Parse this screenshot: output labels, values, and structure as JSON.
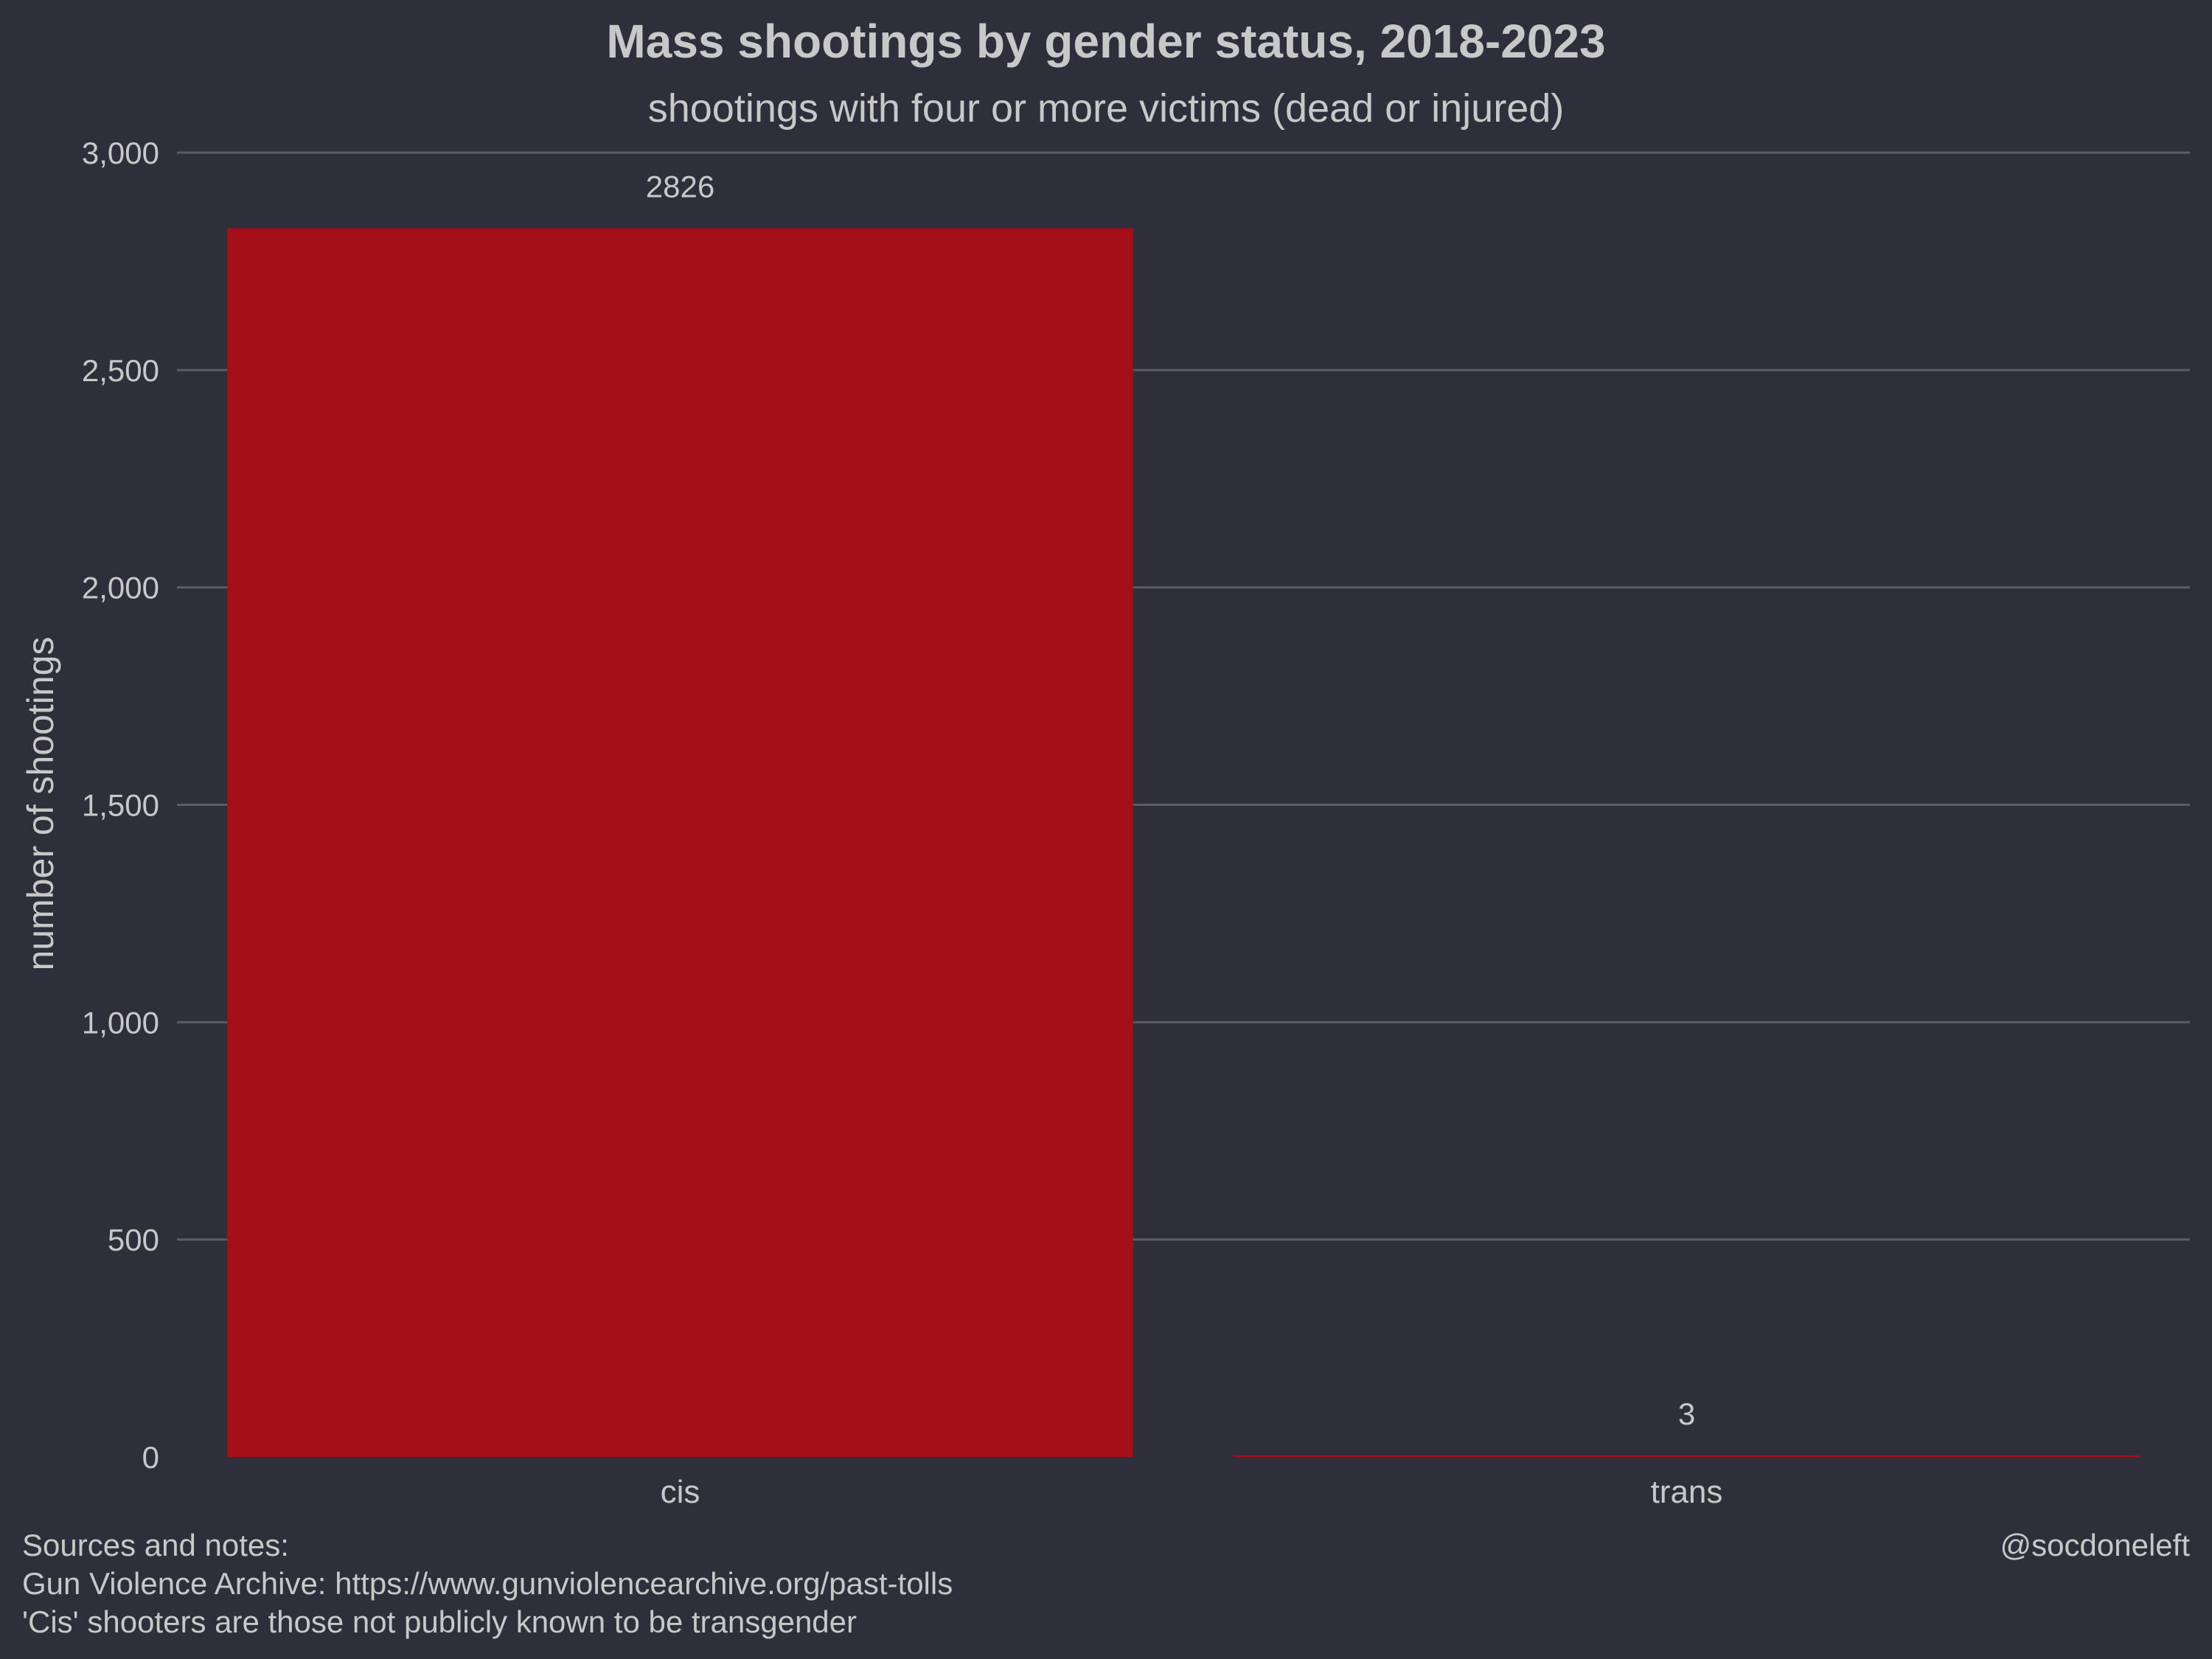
{
  "chart_data": {
    "type": "bar",
    "title": "Mass shootings by gender status, 2018-2023",
    "subtitle": "shootings with four or more victims (dead or injured)",
    "categories": [
      "cis",
      "trans"
    ],
    "values": [
      2826,
      3
    ],
    "data_labels": [
      "2826",
      "3"
    ],
    "xlabel": "",
    "ylabel": "number of shootings",
    "ylim": [
      0,
      3000
    ],
    "yticks": [
      0,
      500,
      1000,
      1500,
      2000,
      2500,
      3000
    ],
    "ytick_labels": [
      "0",
      "500",
      "1,000",
      "1,500",
      "2,000",
      "2,500",
      "3,000"
    ],
    "grid": true,
    "legend": "none",
    "bar_colors": [
      "#a50f17",
      "#a50f17"
    ]
  },
  "footer": {
    "notes": [
      "Sources and notes:",
      "Gun Violence Archive: https://www.gunviolencearchive.org/past-tolls",
      "'Cis' shooters are those not publicly known to be transgender"
    ],
    "credit": "@socdoneleft"
  },
  "colors": {
    "background": "#2e2f3a",
    "grid": "#5a5c6c",
    "text": "#c8c8c8",
    "bar": "#a50f17"
  }
}
